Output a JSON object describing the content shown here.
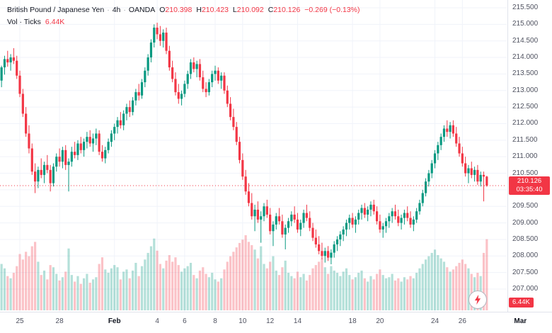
{
  "header": {
    "symbol": "British Pound / Japanese Yen",
    "sep": "·",
    "interval": "4h",
    "exchange": "OANDA",
    "ohlc": {
      "o_label": "O",
      "open": "210.398",
      "h_label": "H",
      "high": "210.423",
      "l_label": "L",
      "low": "210.092",
      "c_label": "C",
      "close": "210.126",
      "change": "−0.269 (−0.13%)"
    },
    "volume_label": "Vol · Ticks",
    "volume_value": "6.44K"
  },
  "chart": {
    "y_ticks": [
      "215.500",
      "215.000",
      "214.500",
      "214.000",
      "213.500",
      "213.000",
      "212.500",
      "212.000",
      "211.500",
      "211.000",
      "210.500",
      "210.000",
      "209.500",
      "209.000",
      "208.500",
      "208.000",
      "207.500",
      "207.000"
    ],
    "x_ticks": [
      {
        "text": "25",
        "index": 6,
        "major": false
      },
      {
        "text": "28",
        "index": 19,
        "major": false
      },
      {
        "text": "Feb",
        "index": 37,
        "major": true
      },
      {
        "text": "4",
        "index": 51,
        "major": false
      },
      {
        "text": "6",
        "index": 60,
        "major": false
      },
      {
        "text": "8",
        "index": 70,
        "major": false
      },
      {
        "text": "10",
        "index": 79,
        "major": false
      },
      {
        "text": "12",
        "index": 88,
        "major": false
      },
      {
        "text": "14",
        "index": 97,
        "major": false
      },
      {
        "text": "18",
        "index": 115,
        "major": false
      },
      {
        "text": "20",
        "index": 124,
        "major": false
      },
      {
        "text": "24",
        "index": 142,
        "major": false
      },
      {
        "text": "26",
        "index": 151,
        "major": false
      },
      {
        "text": "Mar",
        "index": 170,
        "major": true
      }
    ],
    "last_price_label": {
      "price": "210.126",
      "countdown": "03:35:40"
    },
    "volume_axis_label": "6.44K"
  },
  "colors": {
    "up": "#089981",
    "down": "#f23645",
    "vol_up": "rgba(8,153,129,0.30)",
    "vol_down": "rgba(242,54,69,0.30)",
    "accent_red": "#f23645",
    "grid": "#f0f3fa",
    "axis_border": "#e0e3eb",
    "text": "#131722",
    "axis_text": "#4f5260"
  },
  "chart_data": {
    "type": "candlestick",
    "title": "British Pound / Japanese Yen",
    "interval": "4h",
    "exchange": "OANDA",
    "volume_unit": "Ticks",
    "ylim": [
      207.0,
      215.5
    ],
    "last_price": 210.126,
    "last_volume_k": 6.44,
    "candles_format": [
      "open",
      "high",
      "low",
      "close",
      "volume_k"
    ],
    "candles": [
      [
        213.3,
        213.75,
        213.1,
        213.7,
        4.2
      ],
      [
        213.7,
        214.05,
        213.48,
        213.95,
        3.8
      ],
      [
        213.95,
        214.2,
        213.72,
        213.85,
        3.1
      ],
      [
        213.85,
        214.1,
        213.6,
        214.0,
        2.9
      ],
      [
        214.0,
        214.28,
        213.8,
        213.9,
        3.4
      ],
      [
        213.9,
        214.05,
        213.35,
        213.45,
        4.0
      ],
      [
        213.45,
        213.6,
        212.8,
        212.9,
        5.1
      ],
      [
        212.9,
        213.05,
        212.2,
        212.3,
        4.6
      ],
      [
        212.3,
        212.5,
        211.6,
        211.7,
        5.3
      ],
      [
        211.7,
        211.95,
        211.1,
        211.25,
        4.9
      ],
      [
        211.25,
        211.4,
        210.45,
        210.55,
        5.8
      ],
      [
        210.55,
        210.8,
        209.9,
        210.25,
        6.2
      ],
      [
        210.25,
        210.7,
        210.05,
        210.6,
        4.4
      ],
      [
        210.6,
        210.95,
        210.35,
        210.45,
        3.2
      ],
      [
        210.45,
        210.85,
        210.2,
        210.75,
        3.6
      ],
      [
        210.75,
        211.05,
        210.5,
        210.6,
        2.8
      ],
      [
        210.6,
        210.75,
        209.95,
        210.2,
        4.1
      ],
      [
        210.2,
        210.8,
        210.1,
        210.7,
        3.9
      ],
      [
        210.7,
        211.1,
        210.55,
        211.0,
        3.3
      ],
      [
        211.0,
        211.25,
        210.7,
        210.85,
        2.7
      ],
      [
        210.85,
        211.3,
        210.65,
        211.2,
        3.0
      ],
      [
        211.2,
        211.35,
        210.6,
        210.75,
        3.5
      ],
      [
        210.75,
        210.95,
        209.95,
        210.85,
        5.6
      ],
      [
        210.85,
        211.3,
        210.7,
        211.15,
        3.2
      ],
      [
        211.15,
        211.45,
        210.95,
        211.05,
        2.6
      ],
      [
        211.05,
        211.5,
        210.9,
        211.4,
        3.1
      ],
      [
        211.4,
        211.6,
        211.1,
        211.2,
        2.4
      ],
      [
        211.2,
        211.55,
        211.0,
        211.45,
        2.9
      ],
      [
        211.45,
        211.75,
        211.25,
        211.6,
        3.3
      ],
      [
        211.6,
        211.8,
        211.3,
        211.4,
        2.5
      ],
      [
        211.4,
        211.7,
        211.15,
        211.55,
        2.8
      ],
      [
        211.55,
        211.85,
        211.35,
        211.7,
        3.0
      ],
      [
        211.7,
        211.8,
        211.05,
        211.15,
        4.2
      ],
      [
        211.15,
        211.35,
        210.85,
        210.95,
        4.8
      ],
      [
        210.95,
        211.3,
        210.8,
        211.2,
        3.7
      ],
      [
        211.2,
        211.55,
        211.1,
        211.45,
        3.4
      ],
      [
        211.45,
        211.8,
        211.3,
        211.7,
        3.8
      ],
      [
        211.7,
        212.0,
        211.5,
        211.9,
        4.1
      ],
      [
        211.9,
        212.2,
        211.7,
        212.1,
        3.9
      ],
      [
        212.1,
        212.35,
        211.85,
        211.95,
        2.8
      ],
      [
        211.95,
        212.4,
        211.8,
        212.3,
        3.5
      ],
      [
        212.3,
        212.6,
        212.1,
        212.5,
        3.7
      ],
      [
        212.5,
        212.7,
        212.2,
        212.35,
        2.9
      ],
      [
        212.35,
        212.8,
        212.25,
        212.7,
        3.6
      ],
      [
        212.7,
        213.05,
        212.55,
        212.95,
        4.3
      ],
      [
        212.95,
        213.2,
        212.7,
        212.85,
        3.1
      ],
      [
        212.85,
        213.35,
        212.75,
        213.25,
        4.0
      ],
      [
        213.25,
        213.7,
        213.1,
        213.6,
        4.6
      ],
      [
        213.6,
        214.1,
        213.45,
        214.0,
        5.2
      ],
      [
        214.0,
        214.55,
        213.85,
        214.45,
        5.8
      ],
      [
        214.45,
        215.0,
        214.3,
        214.9,
        6.5
      ],
      [
        214.9,
        215.05,
        214.55,
        214.7,
        5.4
      ],
      [
        214.7,
        214.95,
        214.35,
        214.5,
        4.2
      ],
      [
        214.5,
        214.85,
        214.3,
        214.75,
        3.8
      ],
      [
        214.75,
        214.9,
        214.1,
        214.2,
        4.5
      ],
      [
        214.2,
        214.35,
        213.6,
        213.7,
        5.0
      ],
      [
        213.7,
        213.9,
        213.25,
        213.35,
        4.4
      ],
      [
        213.35,
        213.55,
        212.85,
        212.95,
        4.8
      ],
      [
        212.95,
        213.2,
        212.6,
        212.75,
        4.1
      ],
      [
        212.75,
        213.0,
        212.55,
        212.9,
        3.5
      ],
      [
        212.9,
        213.3,
        212.8,
        213.2,
        3.8
      ],
      [
        213.2,
        213.6,
        213.05,
        213.5,
        4.0
      ],
      [
        213.5,
        213.95,
        213.35,
        213.85,
        4.3
      ],
      [
        213.85,
        214.0,
        213.55,
        213.65,
        3.2
      ],
      [
        213.65,
        213.9,
        213.4,
        213.8,
        2.9
      ],
      [
        213.8,
        213.95,
        213.3,
        213.4,
        3.6
      ],
      [
        213.4,
        213.6,
        212.95,
        213.05,
        3.9
      ],
      [
        213.05,
        213.25,
        212.8,
        212.95,
        3.3
      ],
      [
        212.95,
        213.35,
        212.85,
        213.25,
        3.0
      ],
      [
        213.25,
        213.6,
        213.1,
        213.5,
        3.4
      ],
      [
        213.5,
        213.75,
        213.3,
        213.6,
        2.8
      ],
      [
        213.6,
        213.7,
        213.2,
        213.3,
        2.6
      ],
      [
        213.3,
        213.55,
        213.05,
        213.45,
        2.9
      ],
      [
        213.45,
        213.55,
        212.9,
        213.0,
        3.7
      ],
      [
        213.0,
        213.15,
        212.5,
        212.6,
        4.4
      ],
      [
        212.6,
        212.8,
        212.1,
        212.2,
        4.9
      ],
      [
        212.2,
        212.45,
        211.8,
        211.9,
        5.3
      ],
      [
        211.9,
        212.05,
        211.35,
        211.45,
        5.7
      ],
      [
        211.45,
        211.6,
        210.8,
        210.9,
        6.1
      ],
      [
        210.9,
        211.1,
        210.3,
        210.4,
        6.4
      ],
      [
        210.4,
        210.6,
        209.85,
        209.95,
        6.8
      ],
      [
        209.95,
        210.2,
        209.5,
        209.6,
        6.2
      ],
      [
        209.6,
        209.9,
        209.1,
        209.2,
        5.9
      ],
      [
        209.2,
        209.55,
        208.75,
        209.4,
        5.5
      ],
      [
        209.4,
        209.65,
        209.0,
        209.1,
        4.7
      ],
      [
        209.1,
        209.35,
        208.4,
        209.2,
        5.8
      ],
      [
        209.2,
        209.6,
        209.05,
        209.5,
        4.2
      ],
      [
        209.5,
        209.7,
        209.15,
        209.25,
        3.8
      ],
      [
        209.25,
        209.45,
        208.65,
        208.75,
        4.4
      ],
      [
        208.75,
        209.05,
        208.3,
        208.95,
        4.9
      ],
      [
        208.95,
        209.3,
        208.8,
        209.2,
        3.6
      ],
      [
        209.2,
        209.45,
        208.95,
        209.05,
        3.2
      ],
      [
        209.05,
        209.25,
        208.55,
        208.65,
        3.9
      ],
      [
        208.65,
        208.95,
        208.2,
        208.85,
        4.5
      ],
      [
        208.85,
        209.15,
        208.7,
        209.05,
        3.4
      ],
      [
        209.05,
        209.35,
        208.9,
        209.25,
        3.1
      ],
      [
        209.25,
        209.5,
        209.0,
        209.1,
        2.9
      ],
      [
        209.1,
        209.3,
        208.7,
        208.8,
        3.5
      ],
      [
        208.8,
        209.1,
        208.6,
        209.0,
        3.0
      ],
      [
        209.0,
        209.4,
        208.85,
        209.3,
        3.3
      ],
      [
        209.3,
        209.55,
        209.05,
        209.15,
        2.7
      ],
      [
        209.15,
        209.35,
        208.75,
        208.85,
        3.2
      ],
      [
        208.85,
        209.0,
        208.45,
        208.55,
        3.8
      ],
      [
        208.55,
        208.8,
        208.25,
        208.35,
        4.1
      ],
      [
        208.35,
        208.6,
        208.05,
        208.15,
        4.4
      ],
      [
        208.15,
        208.4,
        207.9,
        208.0,
        4.7
      ],
      [
        208.0,
        208.25,
        207.8,
        208.15,
        3.9
      ],
      [
        208.15,
        208.3,
        207.85,
        207.95,
        3.3
      ],
      [
        207.95,
        208.2,
        207.75,
        208.1,
        4.0
      ],
      [
        208.1,
        208.45,
        207.95,
        208.35,
        3.6
      ],
      [
        208.35,
        208.6,
        208.15,
        208.5,
        3.4
      ],
      [
        208.5,
        208.75,
        208.3,
        208.65,
        3.1
      ],
      [
        208.65,
        208.9,
        208.45,
        208.8,
        3.5
      ],
      [
        208.8,
        209.1,
        208.6,
        209.0,
        3.8
      ],
      [
        209.0,
        209.25,
        208.8,
        209.15,
        3.2
      ],
      [
        209.15,
        209.3,
        208.85,
        208.95,
        2.8
      ],
      [
        208.95,
        209.2,
        208.7,
        209.1,
        3.0
      ],
      [
        209.1,
        209.4,
        208.95,
        209.3,
        3.4
      ],
      [
        209.3,
        209.55,
        209.1,
        209.45,
        3.6
      ],
      [
        209.45,
        209.6,
        209.15,
        209.25,
        2.9
      ],
      [
        209.25,
        209.5,
        209.05,
        209.4,
        2.6
      ],
      [
        209.4,
        209.65,
        209.2,
        209.55,
        3.1
      ],
      [
        209.55,
        209.7,
        209.25,
        209.35,
        2.8
      ],
      [
        209.35,
        209.5,
        208.95,
        209.05,
        3.3
      ],
      [
        209.05,
        209.25,
        208.7,
        208.8,
        3.7
      ],
      [
        208.8,
        209.0,
        208.55,
        208.9,
        3.2
      ],
      [
        208.9,
        209.15,
        208.7,
        209.05,
        2.9
      ],
      [
        209.05,
        209.3,
        208.85,
        209.2,
        3.0
      ],
      [
        209.2,
        209.45,
        209.0,
        209.35,
        3.3
      ],
      [
        209.35,
        209.55,
        209.1,
        209.2,
        2.7
      ],
      [
        209.2,
        209.4,
        208.9,
        209.0,
        2.9
      ],
      [
        209.0,
        209.25,
        208.8,
        209.15,
        2.6
      ],
      [
        209.15,
        209.4,
        208.95,
        209.3,
        3.0
      ],
      [
        209.3,
        209.5,
        209.05,
        209.15,
        2.8
      ],
      [
        209.15,
        209.35,
        208.85,
        208.95,
        3.1
      ],
      [
        208.95,
        209.2,
        208.75,
        209.1,
        2.9
      ],
      [
        209.1,
        209.45,
        209.0,
        209.35,
        3.4
      ],
      [
        209.35,
        209.7,
        209.25,
        209.6,
        3.8
      ],
      [
        209.6,
        210.0,
        209.5,
        209.9,
        4.2
      ],
      [
        209.9,
        210.35,
        209.8,
        210.25,
        4.6
      ],
      [
        210.25,
        210.6,
        210.1,
        210.5,
        4.9
      ],
      [
        210.5,
        210.9,
        210.35,
        210.8,
        5.2
      ],
      [
        210.8,
        211.2,
        210.65,
        211.1,
        5.5
      ],
      [
        211.1,
        211.45,
        210.9,
        211.35,
        5.0
      ],
      [
        211.35,
        211.7,
        211.2,
        211.6,
        4.7
      ],
      [
        211.6,
        211.95,
        211.45,
        211.85,
        4.4
      ],
      [
        211.85,
        212.1,
        211.6,
        211.75,
        3.9
      ],
      [
        211.75,
        212.05,
        211.55,
        211.95,
        3.5
      ],
      [
        211.95,
        212.1,
        211.6,
        211.7,
        3.7
      ],
      [
        211.7,
        211.9,
        211.3,
        211.4,
        4.0
      ],
      [
        211.4,
        211.6,
        211.0,
        211.1,
        4.3
      ],
      [
        211.1,
        211.3,
        210.7,
        210.8,
        4.6
      ],
      [
        210.8,
        211.0,
        210.4,
        210.5,
        4.2
      ],
      [
        210.5,
        210.75,
        210.2,
        210.65,
        3.8
      ],
      [
        210.65,
        210.85,
        210.35,
        210.45,
        3.3
      ],
      [
        210.45,
        210.7,
        210.25,
        210.6,
        3.0
      ],
      [
        210.6,
        210.75,
        210.15,
        210.25,
        3.4
      ],
      [
        210.25,
        210.55,
        210.1,
        210.45,
        3.1
      ],
      [
        210.45,
        210.55,
        209.65,
        210.4,
        5.2
      ],
      [
        210.398,
        210.423,
        210.092,
        210.126,
        6.44
      ]
    ]
  }
}
